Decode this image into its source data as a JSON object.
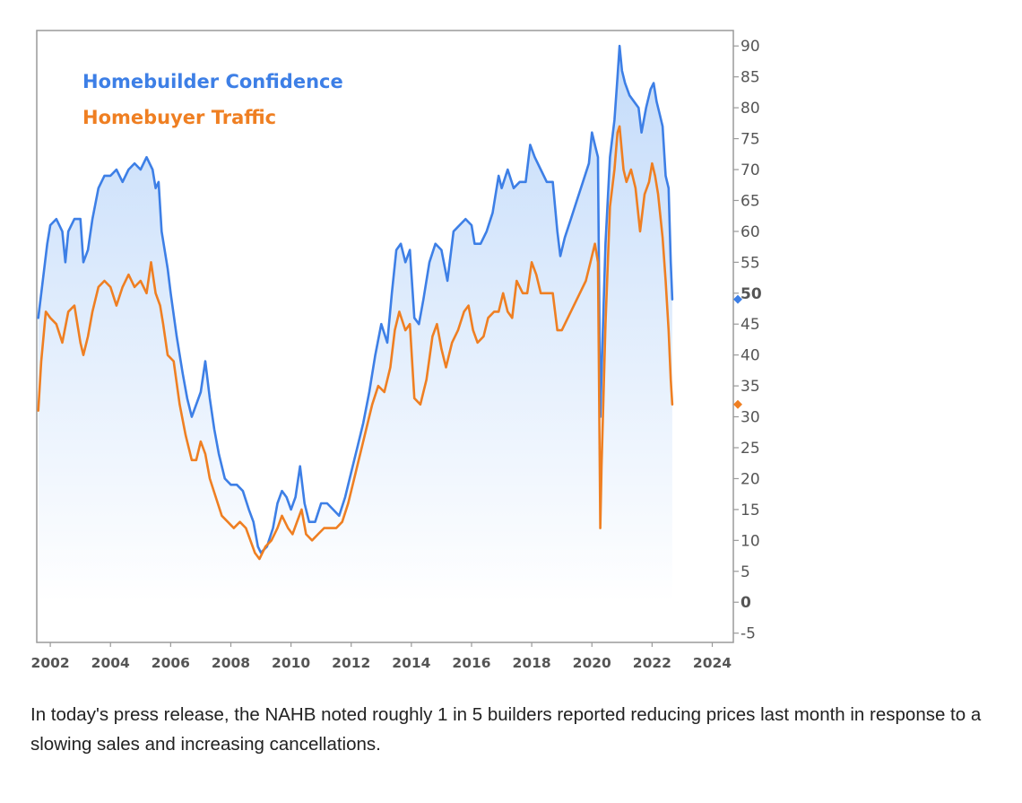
{
  "caption": "In today's press release, the NAHB noted roughly 1 in 5 builders reported reducing prices last month in response to a slowing sales and increasing cancellations.",
  "chart_data": {
    "type": "line",
    "title": "",
    "xlabel": "",
    "ylabel": "",
    "xlim": [
      2001.55,
      2024.7
    ],
    "ylim": [
      -6.5,
      92.5
    ],
    "y_ticks": [
      -5,
      0,
      5,
      10,
      15,
      20,
      25,
      30,
      35,
      40,
      45,
      50,
      55,
      60,
      65,
      70,
      75,
      80,
      85,
      90
    ],
    "y_tick_labels": [
      "-5",
      "0",
      "5",
      "10",
      "15",
      "20",
      "25",
      "30",
      "35",
      "40",
      "45",
      "50",
      "55",
      "60",
      "65",
      "70",
      "75",
      "80",
      "85",
      "90"
    ],
    "x_ticks": [
      2002,
      2004,
      2006,
      2008,
      2010,
      2012,
      2014,
      2016,
      2018,
      2020,
      2022,
      2024
    ],
    "x_tick_labels": [
      "2002",
      "2004",
      "2006",
      "2008",
      "2010",
      "2012",
      "2014",
      "2016",
      "2018",
      "2020",
      "2022",
      "2024"
    ],
    "axis_side": "right",
    "grid": false,
    "legend_position": "top-left",
    "last_value_markers": true,
    "series": [
      {
        "name": "Homebuilder Confidence",
        "color": "#3d7fe6",
        "fill": true,
        "points": [
          [
            2001.6,
            46
          ],
          [
            2001.75,
            52
          ],
          [
            2001.9,
            58
          ],
          [
            2002.0,
            61
          ],
          [
            2002.2,
            62
          ],
          [
            2002.4,
            60
          ],
          [
            2002.5,
            55
          ],
          [
            2002.6,
            60
          ],
          [
            2002.8,
            62
          ],
          [
            2003.0,
            62
          ],
          [
            2003.1,
            55
          ],
          [
            2003.25,
            57
          ],
          [
            2003.4,
            62
          ],
          [
            2003.6,
            67
          ],
          [
            2003.8,
            69
          ],
          [
            2004.0,
            69
          ],
          [
            2004.2,
            70
          ],
          [
            2004.4,
            68
          ],
          [
            2004.6,
            70
          ],
          [
            2004.8,
            71
          ],
          [
            2005.0,
            70
          ],
          [
            2005.2,
            72
          ],
          [
            2005.4,
            70
          ],
          [
            2005.5,
            67
          ],
          [
            2005.6,
            68
          ],
          [
            2005.7,
            60
          ],
          [
            2005.9,
            54
          ],
          [
            2006.0,
            50
          ],
          [
            2006.2,
            43
          ],
          [
            2006.4,
            37
          ],
          [
            2006.55,
            33
          ],
          [
            2006.7,
            30
          ],
          [
            2006.85,
            32
          ],
          [
            2007.0,
            34
          ],
          [
            2007.15,
            39
          ],
          [
            2007.3,
            33
          ],
          [
            2007.45,
            28
          ],
          [
            2007.6,
            24
          ],
          [
            2007.8,
            20
          ],
          [
            2008.0,
            19
          ],
          [
            2008.2,
            19
          ],
          [
            2008.4,
            18
          ],
          [
            2008.6,
            15
          ],
          [
            2008.75,
            13
          ],
          [
            2008.9,
            9
          ],
          [
            2009.0,
            8
          ],
          [
            2009.2,
            9
          ],
          [
            2009.4,
            12
          ],
          [
            2009.55,
            16
          ],
          [
            2009.7,
            18
          ],
          [
            2009.85,
            17
          ],
          [
            2010.0,
            15
          ],
          [
            2010.15,
            17
          ],
          [
            2010.3,
            22
          ],
          [
            2010.45,
            16
          ],
          [
            2010.6,
            13
          ],
          [
            2010.8,
            13
          ],
          [
            2011.0,
            16
          ],
          [
            2011.2,
            16
          ],
          [
            2011.4,
            15
          ],
          [
            2011.6,
            14
          ],
          [
            2011.8,
            17
          ],
          [
            2012.0,
            21
          ],
          [
            2012.2,
            25
          ],
          [
            2012.4,
            29
          ],
          [
            2012.6,
            34
          ],
          [
            2012.8,
            40
          ],
          [
            2013.0,
            45
          ],
          [
            2013.2,
            42
          ],
          [
            2013.35,
            50
          ],
          [
            2013.5,
            57
          ],
          [
            2013.65,
            58
          ],
          [
            2013.8,
            55
          ],
          [
            2013.95,
            57
          ],
          [
            2014.1,
            46
          ],
          [
            2014.25,
            45
          ],
          [
            2014.4,
            49
          ],
          [
            2014.6,
            55
          ],
          [
            2014.8,
            58
          ],
          [
            2015.0,
            57
          ],
          [
            2015.2,
            52
          ],
          [
            2015.4,
            60
          ],
          [
            2015.6,
            61
          ],
          [
            2015.8,
            62
          ],
          [
            2016.0,
            61
          ],
          [
            2016.1,
            58
          ],
          [
            2016.3,
            58
          ],
          [
            2016.5,
            60
          ],
          [
            2016.7,
            63
          ],
          [
            2016.9,
            69
          ],
          [
            2017.0,
            67
          ],
          [
            2017.2,
            70
          ],
          [
            2017.4,
            67
          ],
          [
            2017.6,
            68
          ],
          [
            2017.8,
            68
          ],
          [
            2017.95,
            74
          ],
          [
            2018.1,
            72
          ],
          [
            2018.3,
            70
          ],
          [
            2018.5,
            68
          ],
          [
            2018.7,
            68
          ],
          [
            2018.85,
            60
          ],
          [
            2018.95,
            56
          ],
          [
            2019.1,
            59
          ],
          [
            2019.3,
            62
          ],
          [
            2019.5,
            65
          ],
          [
            2019.7,
            68
          ],
          [
            2019.9,
            71
          ],
          [
            2020.0,
            76
          ],
          [
            2020.1,
            74
          ],
          [
            2020.2,
            72
          ],
          [
            2020.28,
            30
          ],
          [
            2020.32,
            37
          ],
          [
            2020.45,
            58
          ],
          [
            2020.6,
            72
          ],
          [
            2020.75,
            78
          ],
          [
            2020.85,
            85
          ],
          [
            2020.92,
            90
          ],
          [
            2021.0,
            86
          ],
          [
            2021.1,
            84
          ],
          [
            2021.25,
            82
          ],
          [
            2021.4,
            81
          ],
          [
            2021.55,
            80
          ],
          [
            2021.65,
            76
          ],
          [
            2021.8,
            80
          ],
          [
            2021.95,
            83
          ],
          [
            2022.05,
            84
          ],
          [
            2022.15,
            81
          ],
          [
            2022.25,
            79
          ],
          [
            2022.35,
            77
          ],
          [
            2022.45,
            69
          ],
          [
            2022.55,
            67
          ],
          [
            2022.62,
            55
          ],
          [
            2022.67,
            49
          ]
        ]
      },
      {
        "name": "Homebuyer Traffic",
        "color": "#ef7f22",
        "fill": false,
        "points": [
          [
            2001.6,
            31
          ],
          [
            2001.7,
            39
          ],
          [
            2001.85,
            47
          ],
          [
            2002.0,
            46
          ],
          [
            2002.2,
            45
          ],
          [
            2002.4,
            42
          ],
          [
            2002.6,
            47
          ],
          [
            2002.8,
            48
          ],
          [
            2003.0,
            42
          ],
          [
            2003.1,
            40
          ],
          [
            2003.25,
            43
          ],
          [
            2003.4,
            47
          ],
          [
            2003.6,
            51
          ],
          [
            2003.8,
            52
          ],
          [
            2004.0,
            51
          ],
          [
            2004.2,
            48
          ],
          [
            2004.4,
            51
          ],
          [
            2004.6,
            53
          ],
          [
            2004.8,
            51
          ],
          [
            2005.0,
            52
          ],
          [
            2005.2,
            50
          ],
          [
            2005.35,
            55
          ],
          [
            2005.5,
            50
          ],
          [
            2005.65,
            48
          ],
          [
            2005.75,
            45
          ],
          [
            2005.9,
            40
          ],
          [
            2006.1,
            39
          ],
          [
            2006.3,
            32
          ],
          [
            2006.5,
            27
          ],
          [
            2006.7,
            23
          ],
          [
            2006.85,
            23
          ],
          [
            2007.0,
            26
          ],
          [
            2007.15,
            24
          ],
          [
            2007.3,
            20
          ],
          [
            2007.5,
            17
          ],
          [
            2007.7,
            14
          ],
          [
            2007.9,
            13
          ],
          [
            2008.1,
            12
          ],
          [
            2008.3,
            13
          ],
          [
            2008.5,
            12
          ],
          [
            2008.65,
            10
          ],
          [
            2008.8,
            8
          ],
          [
            2008.95,
            7
          ],
          [
            2009.15,
            9
          ],
          [
            2009.35,
            10
          ],
          [
            2009.55,
            12
          ],
          [
            2009.7,
            14
          ],
          [
            2009.9,
            12
          ],
          [
            2010.05,
            11
          ],
          [
            2010.2,
            13
          ],
          [
            2010.35,
            15
          ],
          [
            2010.5,
            11
          ],
          [
            2010.7,
            10
          ],
          [
            2010.9,
            11
          ],
          [
            2011.1,
            12
          ],
          [
            2011.3,
            12
          ],
          [
            2011.5,
            12
          ],
          [
            2011.7,
            13
          ],
          [
            2011.9,
            16
          ],
          [
            2012.1,
            20
          ],
          [
            2012.3,
            24
          ],
          [
            2012.5,
            28
          ],
          [
            2012.7,
            32
          ],
          [
            2012.9,
            35
          ],
          [
            2013.1,
            34
          ],
          [
            2013.3,
            38
          ],
          [
            2013.45,
            44
          ],
          [
            2013.6,
            47
          ],
          [
            2013.8,
            44
          ],
          [
            2013.95,
            45
          ],
          [
            2014.1,
            33
          ],
          [
            2014.3,
            32
          ],
          [
            2014.5,
            36
          ],
          [
            2014.7,
            43
          ],
          [
            2014.85,
            45
          ],
          [
            2015.0,
            41
          ],
          [
            2015.15,
            38
          ],
          [
            2015.35,
            42
          ],
          [
            2015.55,
            44
          ],
          [
            2015.75,
            47
          ],
          [
            2015.9,
            48
          ],
          [
            2016.05,
            44
          ],
          [
            2016.2,
            42
          ],
          [
            2016.4,
            43
          ],
          [
            2016.55,
            46
          ],
          [
            2016.75,
            47
          ],
          [
            2016.9,
            47
          ],
          [
            2017.05,
            50
          ],
          [
            2017.2,
            47
          ],
          [
            2017.35,
            46
          ],
          [
            2017.5,
            52
          ],
          [
            2017.7,
            50
          ],
          [
            2017.85,
            50
          ],
          [
            2018.0,
            55
          ],
          [
            2018.15,
            53
          ],
          [
            2018.3,
            50
          ],
          [
            2018.5,
            50
          ],
          [
            2018.7,
            50
          ],
          [
            2018.85,
            44
          ],
          [
            2019.0,
            44
          ],
          [
            2019.2,
            46
          ],
          [
            2019.4,
            48
          ],
          [
            2019.6,
            50
          ],
          [
            2019.8,
            52
          ],
          [
            2019.95,
            55
          ],
          [
            2020.1,
            58
          ],
          [
            2020.2,
            55
          ],
          [
            2020.28,
            12
          ],
          [
            2020.32,
            22
          ],
          [
            2020.45,
            45
          ],
          [
            2020.6,
            64
          ],
          [
            2020.75,
            70
          ],
          [
            2020.85,
            76
          ],
          [
            2020.92,
            77
          ],
          [
            2021.05,
            70
          ],
          [
            2021.15,
            68
          ],
          [
            2021.3,
            70
          ],
          [
            2021.45,
            67
          ],
          [
            2021.6,
            60
          ],
          [
            2021.75,
            66
          ],
          [
            2021.9,
            68
          ],
          [
            2022.0,
            71
          ],
          [
            2022.1,
            69
          ],
          [
            2022.2,
            66
          ],
          [
            2022.35,
            59
          ],
          [
            2022.45,
            52
          ],
          [
            2022.55,
            44
          ],
          [
            2022.62,
            36
          ],
          [
            2022.67,
            32
          ]
        ]
      }
    ]
  }
}
